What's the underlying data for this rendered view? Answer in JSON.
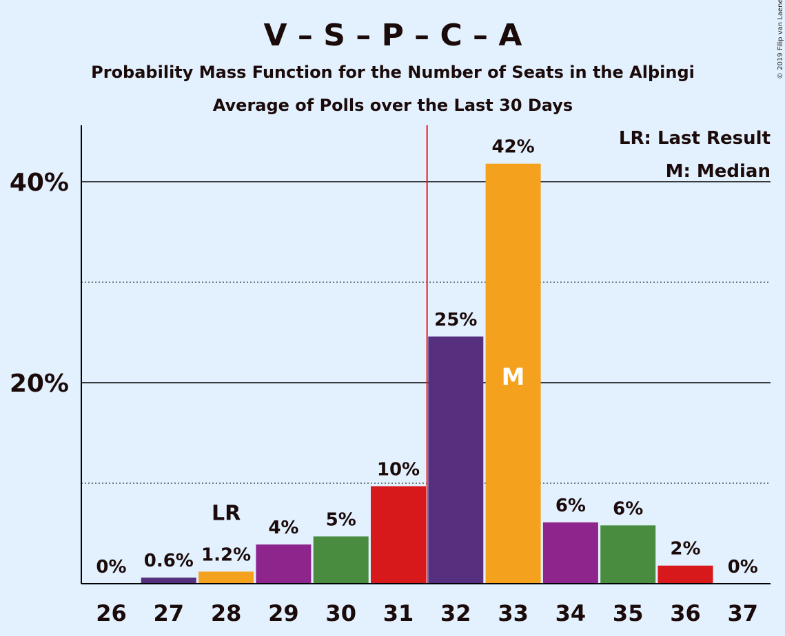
{
  "copyright": "© 2019 Filip van Laenen",
  "chart_data": {
    "type": "bar",
    "title": "V – S – P – C – A",
    "subtitle": "Probability Mass Function for the Number of Seats in the Alþingi",
    "subtitle2": "Average of Polls over the Last 30 Days",
    "categories": [
      "26",
      "27",
      "28",
      "29",
      "30",
      "31",
      "32",
      "33",
      "34",
      "35",
      "36",
      "37"
    ],
    "values": [
      0.0,
      0.6,
      1.2,
      3.9,
      4.7,
      9.7,
      24.6,
      41.8,
      6.1,
      5.8,
      1.8,
      0.0
    ],
    "data_labels": [
      "0%",
      "0.6%",
      "1.2%",
      "4%",
      "5%",
      "10%",
      "25%",
      "42%",
      "6%",
      "6%",
      "2%",
      "0%"
    ],
    "bar_colors": [
      "#e41a1c",
      "#56307f",
      "#f4a21e",
      "#8e258d",
      "#4a8c3f",
      "#d7191c",
      "#56307f",
      "#f4a21e",
      "#8e258d",
      "#4a8c3f",
      "#d7191c",
      "#56307f"
    ],
    "ylim": [
      0,
      45
    ],
    "yticks": [
      20,
      40
    ],
    "ytick_labels": [
      "20%",
      "40%"
    ],
    "minor_gridlines": [
      10,
      30
    ],
    "last_result_category": "28",
    "last_result_marker": "LR",
    "median_category": "33",
    "median_marker": "M",
    "majority_line_x": 31.5,
    "majority_line_color": "#e41a1c",
    "legend": [
      "LR: Last Result",
      "M: Median"
    ],
    "legend_position": "top-right",
    "grid": true
  }
}
